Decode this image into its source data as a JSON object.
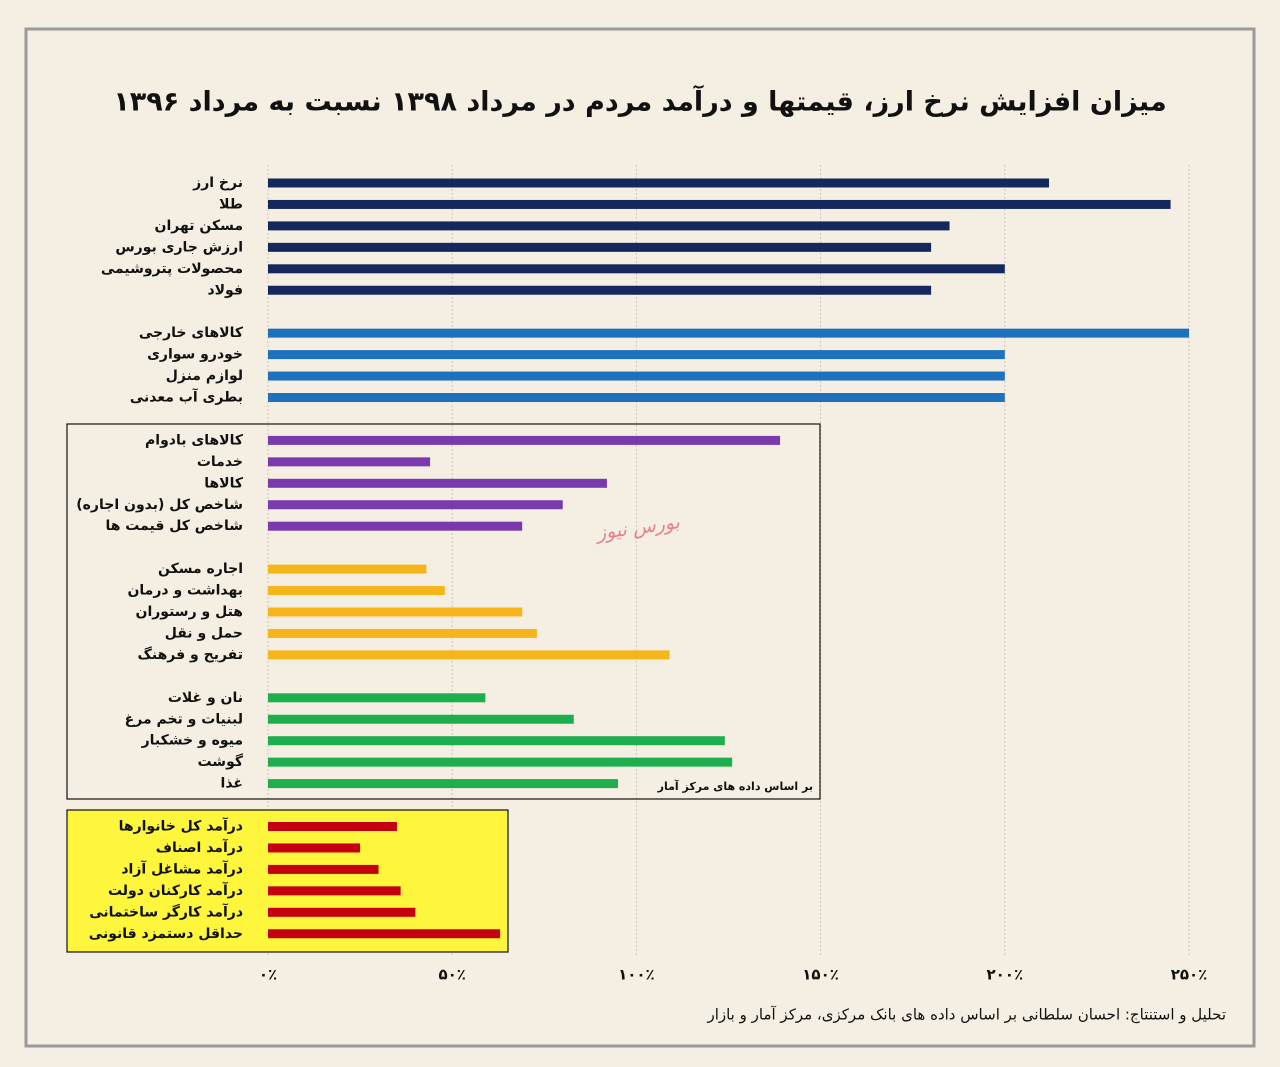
{
  "chart_data": {
    "type": "bar",
    "orientation": "horizontal",
    "title": "میزان افزایش نرخ ارز، قیمتها و درآمد مردم در مرداد ۱۳۹۸ نسبت به مرداد ۱۳۹۶",
    "groups": [
      {
        "color": "#14285e",
        "categories": [
          "نرخ ارز",
          "طلا",
          "مسکن تهران",
          "ارزش جاری بورس",
          "محصولات پتروشیمی",
          "فولاد"
        ],
        "values": [
          212,
          245,
          185,
          180,
          200,
          180
        ]
      },
      {
        "color": "#1e72bd",
        "categories": [
          "کالاهای خارجی",
          "خودرو سواری",
          "لوازم منزل",
          "بطری آب معدنی"
        ],
        "values": [
          250,
          200,
          200,
          200
        ]
      },
      {
        "color": "#7a3aae",
        "categories": [
          "کالاهای بادوام",
          "خدمات",
          "کالاها",
          "شاخص کل (بدون اجاره)",
          "شاخص کل قیمت ها"
        ],
        "values": [
          139,
          44,
          92,
          80,
          69
        ]
      },
      {
        "color": "#f6b61b",
        "categories": [
          "اجاره مسکن",
          "بهداشت و درمان",
          "هتل و رستوران",
          "حمل و نقل",
          "تفریح و فرهنگ"
        ],
        "values": [
          43,
          48,
          69,
          73,
          109
        ]
      },
      {
        "color": "#1fae4e",
        "categories": [
          "نان و غلات",
          "لبنیات و تخم مرغ",
          "میوه و خشکبار",
          "گوشت",
          "غذا"
        ],
        "values": [
          59,
          83,
          124,
          126,
          95
        ]
      },
      {
        "color": "#c4000f",
        "categories": [
          "درآمد کل خانوارها",
          "درآمد اصناف",
          "درآمد مشاغل آزاد",
          "درآمد کارکنان دولت",
          "درآمد کارگر ساختمانی",
          "حداقل دستمزد قانونی"
        ],
        "values": [
          35,
          25,
          30,
          36,
          40,
          63
        ]
      }
    ],
    "xlim": [
      0,
      250
    ],
    "xticks": [
      {
        "value": 0,
        "label": "۰٪"
      },
      {
        "value": 50,
        "label": "۵۰٪"
      },
      {
        "value": 100,
        "label": "۱۰۰٪"
      },
      {
        "value": 150,
        "label": "۱۵۰٪"
      },
      {
        "value": 200,
        "label": "۲۰۰٪"
      },
      {
        "value": 250,
        "label": "۲۵۰٪"
      }
    ],
    "grid": true,
    "note": "بر اساس داده های مرکز آمار",
    "watermark": "بورس نیوز",
    "credit": "تحلیل و استنتاج:  احسان سلطانی بر اساس داده های بانک مرکزی، مرکز آمار و بازار"
  }
}
